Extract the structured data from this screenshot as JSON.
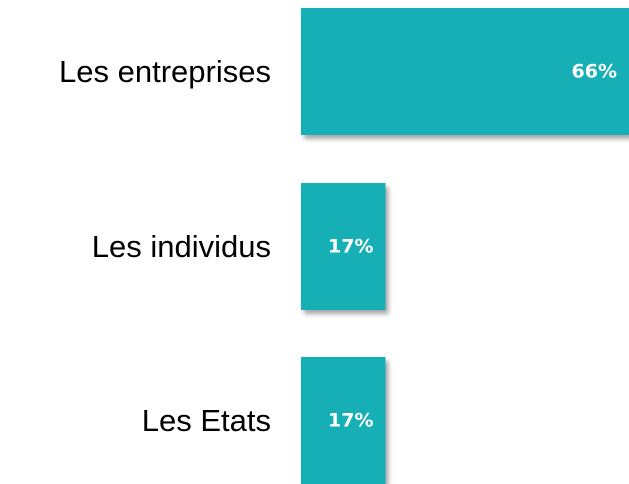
{
  "chart_data": {
    "type": "bar",
    "orientation": "horizontal",
    "categories": [
      "Les entreprises",
      "Les individus",
      "Les Etats"
    ],
    "values": [
      66,
      17,
      17
    ],
    "value_labels": [
      "66%",
      "17%",
      "17%"
    ],
    "unit": "%",
    "xlim": [
      0,
      66
    ],
    "bar_color": "#17AFB5",
    "label_color": "#000000",
    "value_label_color": "#ffffff",
    "grid": false,
    "legend": "none"
  }
}
